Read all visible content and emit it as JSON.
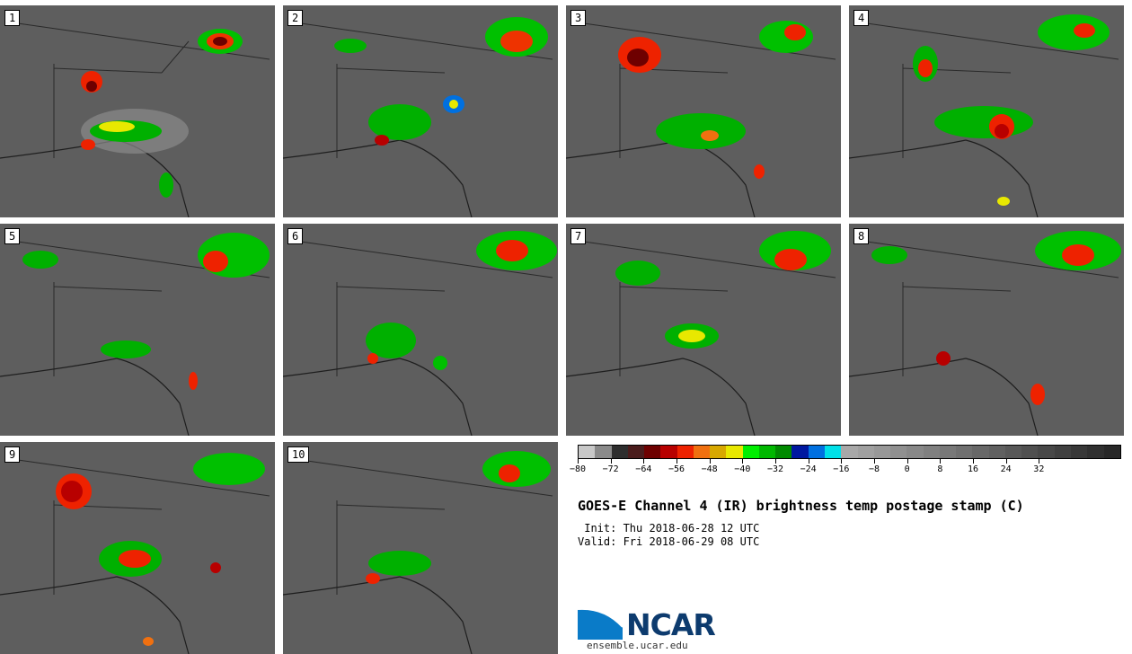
{
  "title": "GOES-E Channel 4 (IR) brightness temp postage stamp (C)",
  "init": " Init: Thu 2018-06-28 12 UTC",
  "valid": "Valid: Fri 2018-06-29 08 UTC",
  "logo_text": "NCAR",
  "site": "ensemble.ucar.edu",
  "panels": [
    "1",
    "2",
    "3",
    "4",
    "5",
    "6",
    "7",
    "8",
    "9",
    "10"
  ],
  "colorbar": {
    "colors": [
      "#c8c8c8",
      "#8a8a8a",
      "#2e2e2e",
      "#4a1c1c",
      "#6e0000",
      "#b80000",
      "#ee2200",
      "#f07010",
      "#d8a800",
      "#e8e800",
      "#00ee00",
      "#00b800",
      "#008a00",
      "#0018a0",
      "#0070e0",
      "#00e0e8",
      "#a8a8a8",
      "#a0a0a0",
      "#989898",
      "#909090",
      "#888888",
      "#808080",
      "#787878",
      "#707070",
      "#686868",
      "#606060",
      "#585858",
      "#505050",
      "#484848",
      "#404040",
      "#383838",
      "#303030",
      "#282828"
    ],
    "ticks": [
      "−80",
      "−72",
      "−64",
      "−56",
      "−48",
      "−40",
      "−32",
      "−24",
      "−16",
      "−8",
      "0",
      "8",
      "16",
      "24",
      "32"
    ]
  },
  "colors": {
    "background": "#5e5e5e",
    "storm_red": "#d02000",
    "storm_green": "#00c000"
  }
}
